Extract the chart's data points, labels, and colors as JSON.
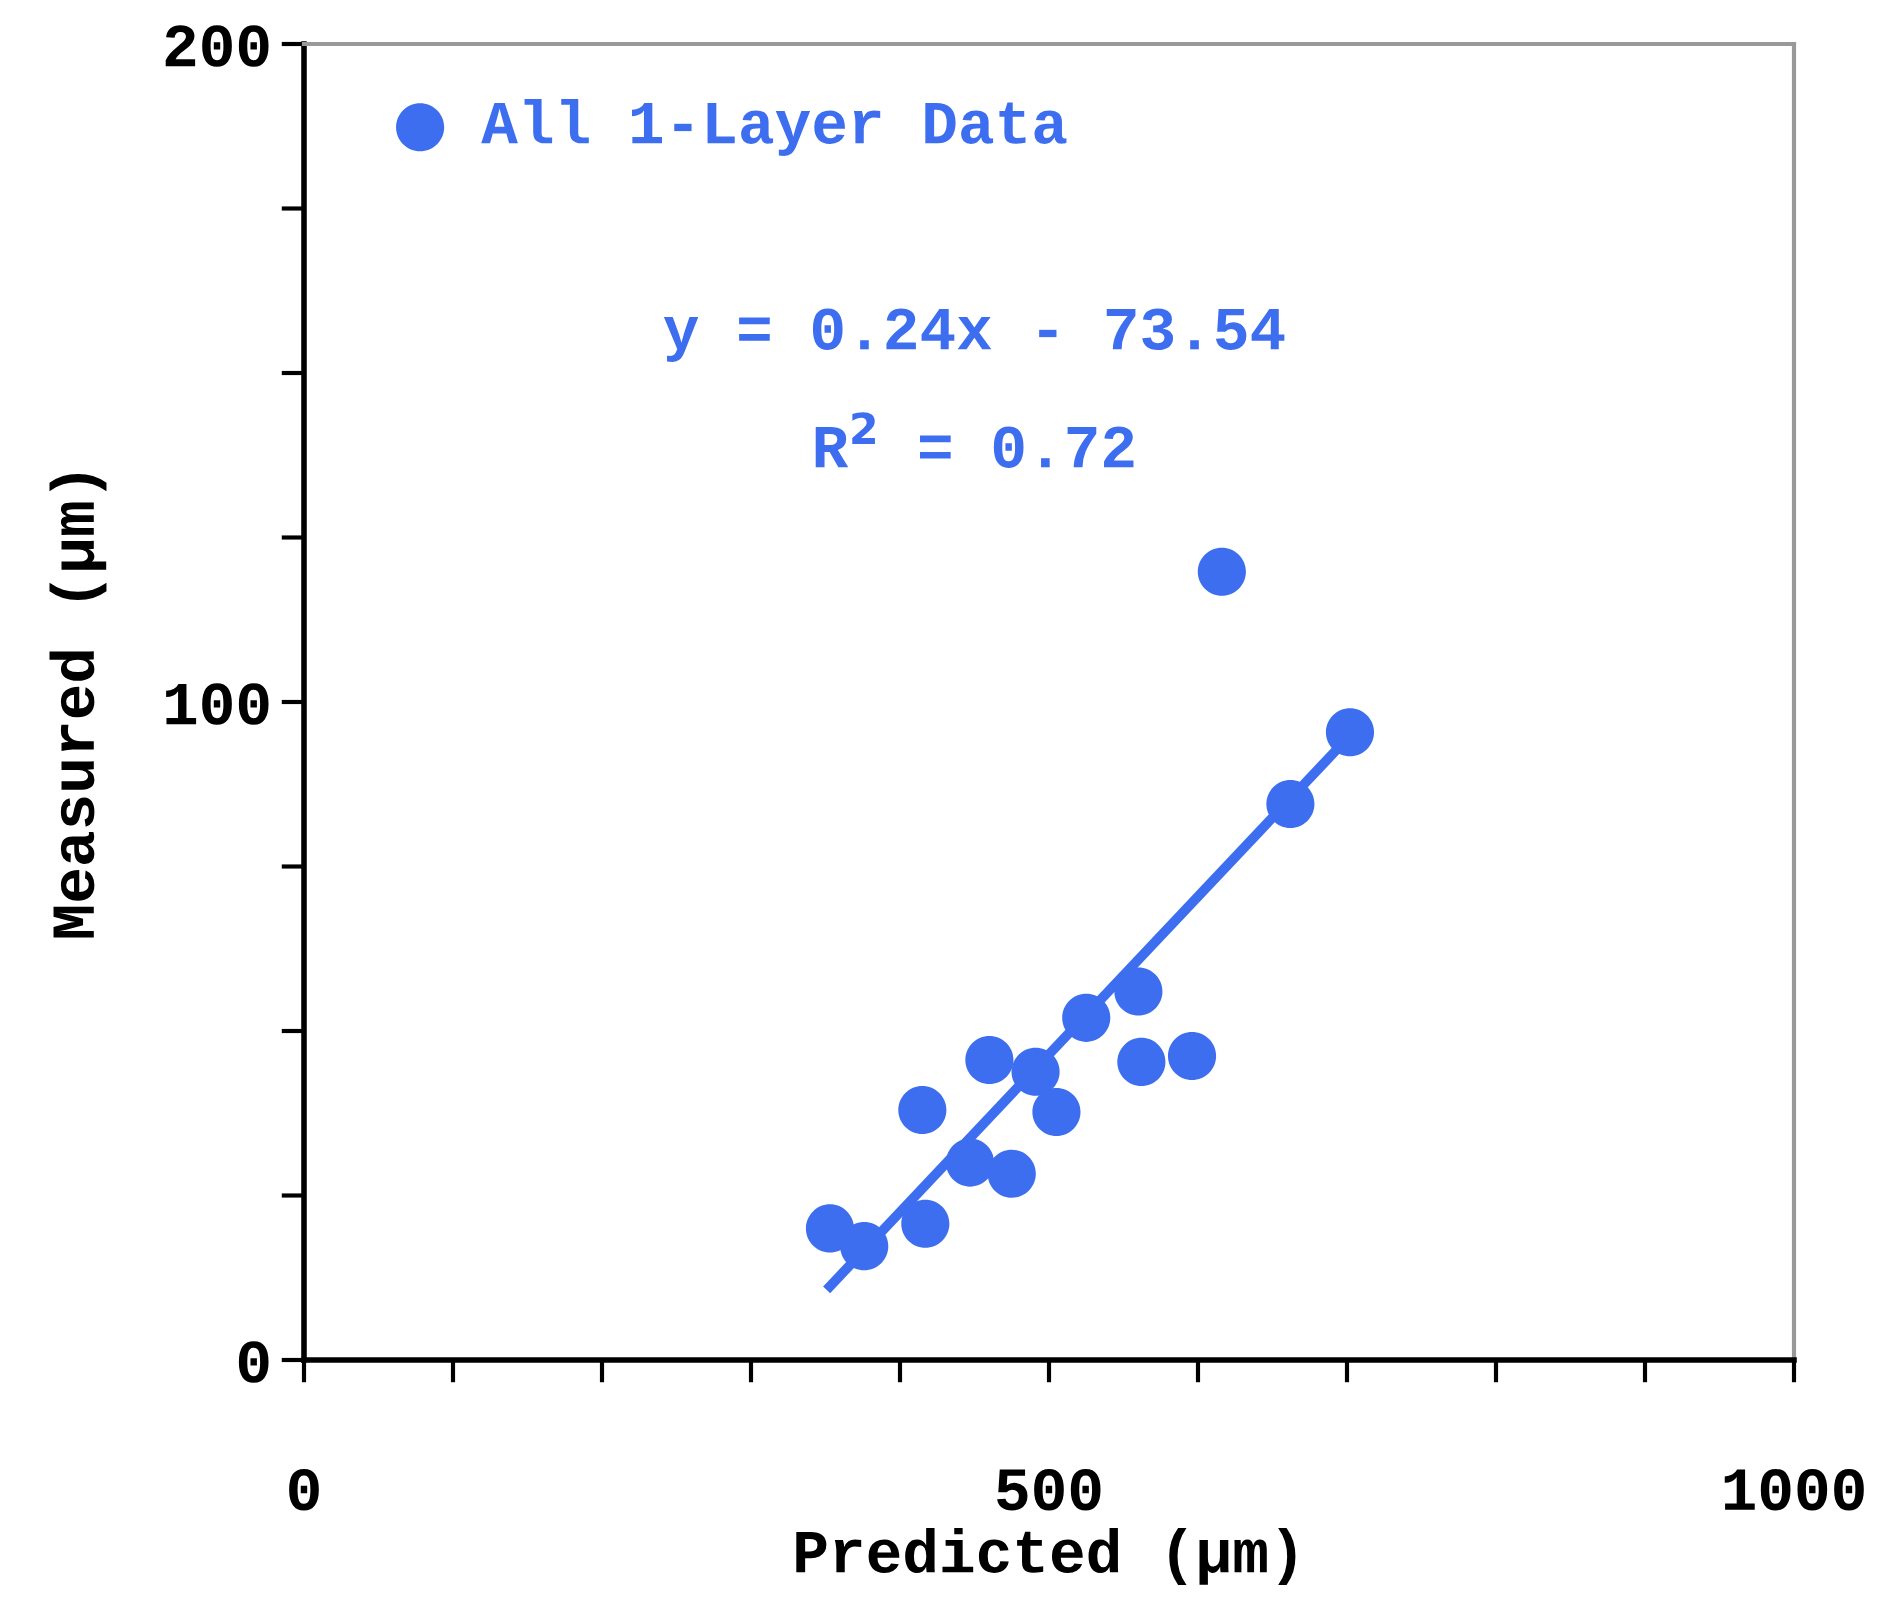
{
  "chart_data": {
    "type": "scatter",
    "xlabel": "Predicted (µm)",
    "ylabel": "Measured (µm)",
    "xlim": [
      0,
      1000
    ],
    "ylim": [
      0,
      200
    ],
    "xticks": [
      0,
      {
        "value": 100,
        "label": null
      },
      {
        "value": 200,
        "label": null
      },
      {
        "value": 300,
        "label": null
      },
      {
        "value": 400,
        "label": null
      },
      500,
      {
        "value": 600,
        "label": null
      },
      {
        "value": 700,
        "label": null
      },
      {
        "value": 800,
        "label": null
      },
      {
        "value": 900,
        "label": null
      },
      1000
    ],
    "yticks": [
      0,
      {
        "value": 25,
        "label": null
      },
      {
        "value": 50,
        "label": null
      },
      {
        "value": 75,
        "label": null
      },
      100,
      {
        "value": 125,
        "label": null
      },
      {
        "value": 150,
        "label": null
      },
      {
        "value": 175,
        "label": null
      },
      200
    ],
    "grid": false,
    "legend": "top left",
    "annotations": [
      "y = 0.24x - 73.54",
      "R$^{2}$ = 0.72"
    ],
    "series": [
      {
        "name": "All 1-Layer Data",
        "color": "#3d6ef0",
        "marker": "circle",
        "x": [
          353,
          376,
          417,
          415,
          447,
          460,
          475,
          491,
          505,
          525,
          560,
          562,
          596,
          616,
          662,
          702
        ],
        "values": [
          20,
          17.3,
          20.7,
          38,
          30,
          45.6,
          28.3,
          43.8,
          37.7,
          52,
          56,
          45.3,
          46.2,
          119.8,
          84.5,
          95.4
        ]
      },
      {
        "type": "line",
        "color": "#3d6ef0",
        "x": [
          353,
          702
        ],
        "values": [
          11.2,
          94.9
        ],
        "line_style": "solid"
      }
    ]
  }
}
